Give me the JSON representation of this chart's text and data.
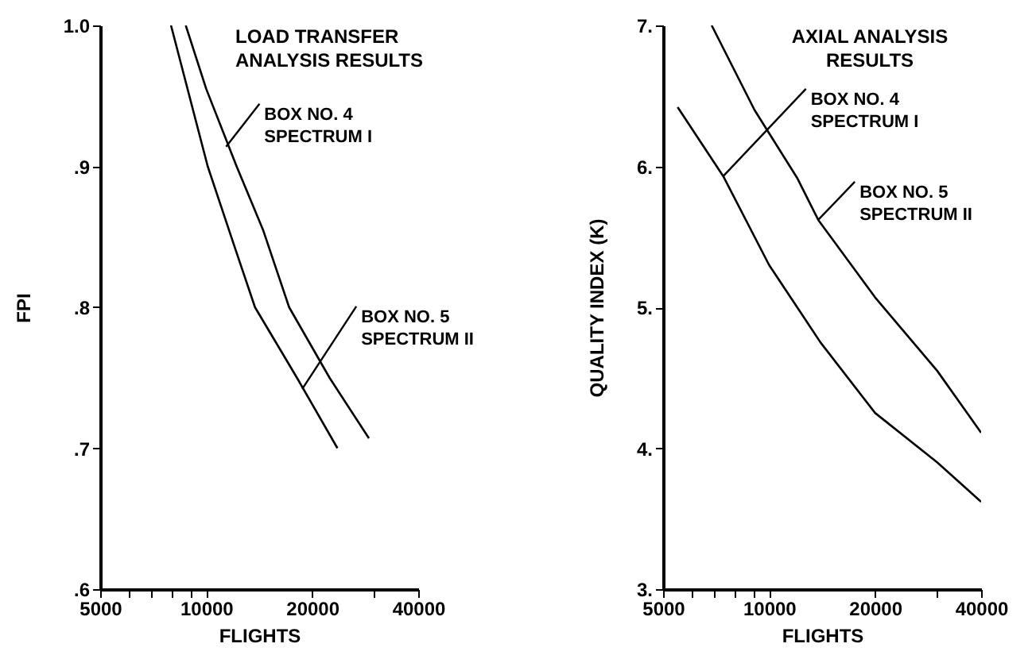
{
  "chart_data": [
    {
      "type": "line",
      "title": "LOAD TRANSFER\nANALYSIS RESULTS",
      "xlabel": "FLIGHTS",
      "ylabel": "FPI",
      "log": "x",
      "grid": false,
      "xlim": [
        5000,
        40000
      ],
      "xticks": [
        5000,
        {
          "value": 6000,
          "label": null
        },
        {
          "value": 7000,
          "label": null
        },
        {
          "value": 8000,
          "label": null
        },
        {
          "value": 9000,
          "label": null
        },
        10000,
        20000,
        {
          "value": 30000,
          "label": null
        },
        40000
      ],
      "ylim": [
        0.6,
        1.0
      ],
      "yticks": [
        {
          "value": 0.6,
          "label": ".6"
        },
        {
          "value": 0.7,
          "label": ".7"
        },
        {
          "value": 0.8,
          "label": ".8"
        },
        {
          "value": 0.9,
          "label": ".9"
        },
        {
          "value": 1.0,
          "label": "1.0"
        }
      ],
      "series": [
        {
          "color": "#000000",
          "x": [
            8750,
            10000,
            12200,
            14500,
            17200,
            22400,
            28980
          ],
          "values": [
            1.0,
            0.955,
            0.9,
            0.855,
            0.8,
            0.75,
            0.707
          ]
        },
        {
          "color": "#000000",
          "x": [
            7945,
            10100,
            12000,
            13760,
            18100,
            23590
          ],
          "values": [
            1.0,
            0.9,
            0.844,
            0.8,
            0.75,
            0.7
          ]
        }
      ],
      "annotations": [
        {
          "text": "BOX NO. 4\nSPECTRUM I",
          "x": 11390,
          "y": 0.914
        },
        {
          "text": "BOX NO. 5\nSPECTRUM II",
          "x": 18740,
          "y": 0.742
        }
      ]
    },
    {
      "type": "line",
      "title": "AXIAL ANALYSIS\nRESULTS",
      "xlabel": "FLIGHTS",
      "ylabel": "QUALITY INDEX (K)",
      "log": "x",
      "grid": false,
      "xlim": [
        5000,
        40000
      ],
      "xticks": [
        5000,
        {
          "value": 6000,
          "label": null
        },
        {
          "value": 7000,
          "label": null
        },
        {
          "value": 8000,
          "label": null
        },
        {
          "value": 9000,
          "label": null
        },
        10000,
        20000,
        {
          "value": 30000,
          "label": null
        },
        40000
      ],
      "ylim": [
        3,
        7
      ],
      "yticks": [
        {
          "value": 3,
          "label": "3."
        },
        {
          "value": 4,
          "label": "4."
        },
        {
          "value": 5,
          "label": "5."
        },
        {
          "value": 6,
          "label": "6."
        },
        {
          "value": 7,
          "label": "7."
        }
      ],
      "series": [
        {
          "color": "#000000",
          "x": [
            6870,
            9090,
            12000,
            13790,
            20000,
            30000,
            40000
          ],
          "values": [
            7.0,
            6.4,
            5.92,
            5.62,
            5.07,
            4.55,
            4.11
          ]
        },
        {
          "color": "#000000",
          "x": [
            5500,
            7410,
            10000,
            14000,
            20000,
            30000,
            40000
          ],
          "values": [
            6.42,
            5.93,
            5.3,
            4.75,
            4.25,
            3.9,
            3.62
          ]
        }
      ],
      "annotations": [
        {
          "text": "BOX NO. 4\nSPECTRUM I",
          "x": 7410,
          "y": 5.93
        },
        {
          "text": "BOX NO. 5\nSPECTRUM II",
          "x": 13790,
          "y": 5.62
        }
      ]
    }
  ]
}
